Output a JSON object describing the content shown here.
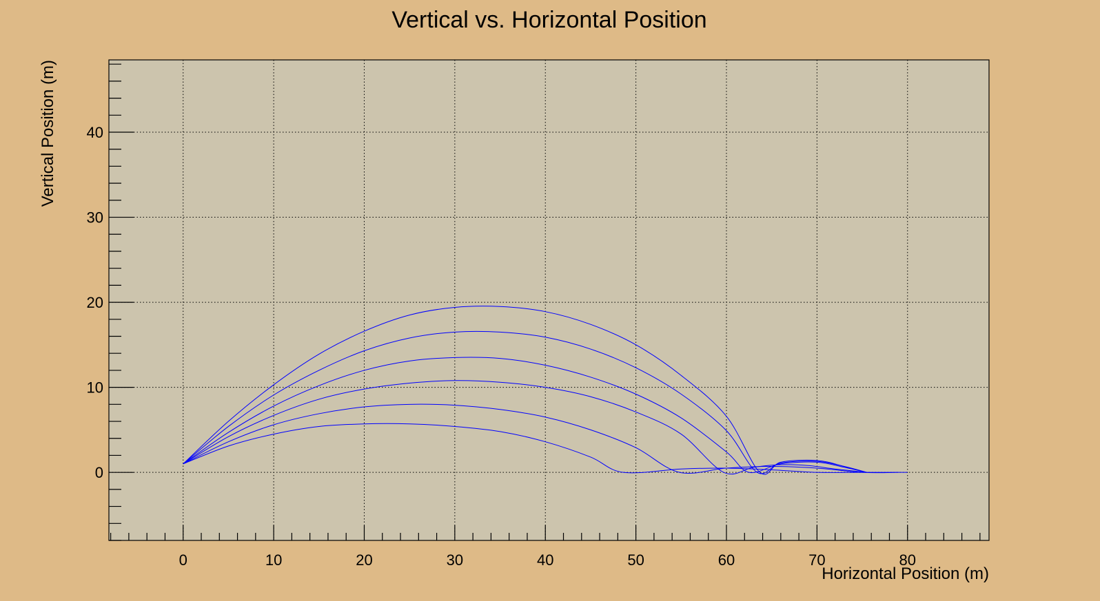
{
  "chart_data": {
    "type": "line",
    "title": "Vertical vs. Horizontal Position",
    "xlabel": "Horizontal Position (m)",
    "ylabel": "Vertical Position (m)",
    "xlim": [
      -8.2,
      89
    ],
    "ylim": [
      -8,
      48.5
    ],
    "x_ticks": [
      0,
      10,
      20,
      30,
      40,
      50,
      60,
      70,
      80
    ],
    "y_ticks": [
      0,
      10,
      20,
      30,
      40
    ],
    "grid": true,
    "colors": {
      "background": "#DEBA87",
      "plot_area": "#CCC4AD",
      "series": "#0000FF"
    },
    "series": [
      {
        "x": [
          0,
          5,
          10,
          15,
          20,
          25,
          30,
          35,
          40,
          45,
          48.6,
          55,
          60,
          65,
          70,
          75,
          80
        ],
        "y": [
          1.0,
          3.1,
          4.5,
          5.4,
          5.7,
          5.7,
          5.4,
          4.8,
          3.6,
          1.8,
          0.0,
          0.4,
          0.5,
          0.3,
          0.0,
          0.0,
          0.0
        ]
      },
      {
        "x": [
          0,
          5,
          10,
          15,
          20,
          25,
          30,
          35,
          40,
          45,
          50,
          54.8,
          60,
          65,
          70,
          75,
          79
        ],
        "y": [
          1.0,
          3.6,
          5.6,
          6.9,
          7.7,
          8.0,
          7.9,
          7.4,
          6.5,
          5.0,
          2.9,
          0.0,
          0.5,
          0.7,
          0.5,
          0.0,
          0.0
        ]
      },
      {
        "x": [
          0,
          5,
          10,
          15,
          20,
          25,
          30,
          35,
          40,
          45,
          50,
          55,
          59.7,
          63,
          66,
          69,
          72,
          75.5
        ],
        "y": [
          1.0,
          4.2,
          6.7,
          8.6,
          9.8,
          10.5,
          10.8,
          10.6,
          10.0,
          8.9,
          7.1,
          4.5,
          0.0,
          0.6,
          0.9,
          0.8,
          0.4,
          0.0
        ]
      },
      {
        "x": [
          0,
          5,
          10,
          15,
          20,
          25,
          30,
          35,
          40,
          45,
          50,
          55,
          60,
          62.5,
          66,
          70,
          73,
          75.5
        ],
        "y": [
          1.0,
          4.7,
          7.8,
          10.2,
          12.0,
          13.1,
          13.5,
          13.4,
          12.6,
          11.2,
          9.2,
          6.4,
          2.4,
          0.0,
          1.0,
          1.2,
          0.6,
          0.0
        ]
      },
      {
        "x": [
          0,
          5,
          10,
          15,
          20,
          25,
          30,
          35,
          40,
          45,
          50,
          55,
          60,
          63.4,
          66,
          70,
          73,
          75.5
        ],
        "y": [
          1.0,
          5.4,
          9.1,
          12.0,
          14.3,
          15.8,
          16.5,
          16.5,
          15.9,
          14.5,
          12.3,
          9.2,
          4.9,
          0.0,
          1.1,
          1.3,
          0.7,
          0.0
        ]
      },
      {
        "x": [
          0,
          5,
          10,
          15,
          20,
          25,
          30,
          35,
          40,
          45,
          50,
          55,
          60,
          63.7,
          66,
          70,
          73,
          75.5
        ],
        "y": [
          1.0,
          6.0,
          10.3,
          13.9,
          16.6,
          18.5,
          19.4,
          19.5,
          18.9,
          17.4,
          15.0,
          11.4,
          6.6,
          0.0,
          1.2,
          1.4,
          0.7,
          0.0
        ]
      }
    ]
  }
}
